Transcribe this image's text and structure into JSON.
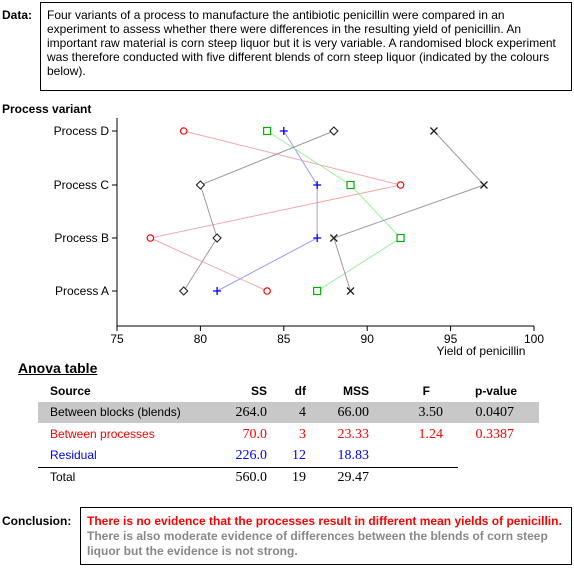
{
  "data_label": "Data:",
  "data_text": "Four variants of a process to manufacture the antibiotic penicillin were compared in an experiment to assess whether there were differences in the resulting yield of penicillin. An important raw material is corn steep liquor but it is very variable. A randomised block experiment was therefore conducted with five different blends of corn steep liquor (indicated by the colours below).",
  "chart_data": {
    "type": "scatter",
    "ylabel": "Process variant",
    "xlabel": "Yield of penicillin",
    "xlim": [
      75,
      100
    ],
    "xticks": [
      "75",
      "80",
      "85",
      "90",
      "95",
      "100"
    ],
    "categories": [
      "Process A",
      "Process B",
      "Process C",
      "Process D"
    ],
    "series": [
      {
        "marker": "circle",
        "color": "#ff0000",
        "line": "#f4a8a8",
        "values": [
          84,
          77,
          92,
          79
        ]
      },
      {
        "marker": "plus",
        "color": "#0000ff",
        "line": "#9a9aff",
        "values": [
          81,
          87,
          87,
          85
        ]
      },
      {
        "marker": "square",
        "color": "#00b000",
        "line": "#99ee99",
        "values": [
          87,
          92,
          89,
          84
        ]
      },
      {
        "marker": "diamond",
        "color": "#202020",
        "line": "#9a9a9a",
        "values": [
          79,
          81,
          80,
          88
        ]
      },
      {
        "marker": "cross",
        "color": "#202020",
        "line": "#9a9a9a",
        "values": [
          89,
          88,
          97,
          94
        ]
      }
    ]
  },
  "anova": {
    "title": "Anova table",
    "headers": {
      "source": "Source",
      "ss": "SS",
      "df": "df",
      "mss": "MSS",
      "f": "F",
      "p": "p-value"
    },
    "rows": [
      {
        "source": "Between blocks (blends)",
        "ss": "264.0",
        "df": "4",
        "mss": "66.00",
        "f": "3.50",
        "p": "0.0407",
        "color": "#000000",
        "bg": "#c8c8c8"
      },
      {
        "source": "Between processes",
        "ss": "70.0",
        "df": "3",
        "mss": "23.33",
        "f": "1.24",
        "p": "0.3387",
        "color": "#ff0000",
        "bg": "#ffffff"
      },
      {
        "source": "Residual",
        "ss": "226.0",
        "df": "12",
        "mss": "18.83",
        "f": "",
        "p": "",
        "color": "#0000ff",
        "bg": "#ffffff"
      },
      {
        "source": "Total",
        "ss": "560.0",
        "df": "19",
        "mss": "29.47",
        "f": "",
        "p": "",
        "color": "#000000",
        "bg": "#ffffff"
      }
    ]
  },
  "conclusion_label": "Conclusion:",
  "conclusion_red": "There is no evidence that the processes result in different mean yields of penicillin.",
  "conclusion_grey": " There is also moderate evidence of differences between the blends of corn steep liquor but the evidence is not strong."
}
